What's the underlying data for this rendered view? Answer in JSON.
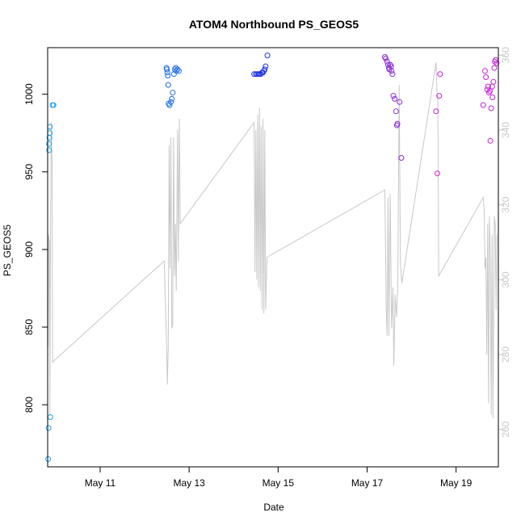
{
  "chart_data": {
    "type": "scatter",
    "title": "ATOM4 Northbound PS_GEOS5",
    "xlabel": "Date",
    "ylabel": "PS_GEOS5",
    "x_unit": "days since May 9 00:00",
    "xlim": [
      9.82,
      19.95
    ],
    "ylim": [
      760,
      1030
    ],
    "y2lim": [
      250,
      362
    ],
    "x_ticks": [
      {
        "value": 11,
        "label": "May 11"
      },
      {
        "value": 13,
        "label": "May 13"
      },
      {
        "value": 15,
        "label": "May 15"
      },
      {
        "value": 17,
        "label": "May 17"
      },
      {
        "value": 19,
        "label": "May 19"
      }
    ],
    "y_ticks": [
      800,
      850,
      900,
      950,
      1000
    ],
    "y2_ticks": [
      260,
      280,
      300,
      320,
      340,
      360
    ],
    "colors": {
      "axis": "#000000",
      "secondary_axis": "#c8c8c8",
      "line": "#c8c8c8"
    },
    "points_series": [
      {
        "color": "#1aa3e8",
        "points": [
          [
            9.83,
            765
          ],
          [
            9.84,
            785
          ],
          [
            9.85,
            964
          ],
          [
            9.85,
            968
          ],
          [
            9.86,
            972
          ],
          [
            9.87,
            975
          ],
          [
            9.87,
            979
          ],
          [
            9.88,
            792
          ],
          [
            9.93,
            993
          ],
          [
            9.95,
            993
          ]
        ]
      },
      {
        "color": "#1f6ee8",
        "points": [
          [
            12.49,
            1017
          ],
          [
            12.5,
            1016
          ],
          [
            12.51,
            1014
          ],
          [
            12.52,
            1012
          ],
          [
            12.53,
            1006
          ],
          [
            12.54,
            994
          ],
          [
            12.56,
            993
          ],
          [
            12.59,
            995
          ],
          [
            12.61,
            997
          ],
          [
            12.63,
            1001
          ],
          [
            12.66,
            1013
          ],
          [
            12.68,
            1016
          ],
          [
            12.7,
            1017
          ],
          [
            12.71,
            1015
          ],
          [
            12.74,
            1016
          ],
          [
            12.77,
            1015
          ]
        ]
      },
      {
        "color": "#2233e0",
        "points": [
          [
            14.46,
            1013
          ],
          [
            14.5,
            1013
          ],
          [
            14.53,
            1013
          ],
          [
            14.56,
            1013
          ],
          [
            14.58,
            1013
          ],
          [
            14.61,
            1013
          ],
          [
            14.64,
            1014
          ],
          [
            14.66,
            1014
          ],
          [
            14.68,
            1015
          ],
          [
            14.7,
            1016
          ],
          [
            14.72,
            1018
          ],
          [
            14.76,
            1025
          ]
        ]
      },
      {
        "color": "#8a2ad8",
        "points": [
          [
            17.4,
            1024
          ],
          [
            17.42,
            1023
          ],
          [
            17.45,
            1021
          ],
          [
            17.47,
            1019
          ],
          [
            17.49,
            1017
          ],
          [
            17.5,
            1016
          ],
          [
            17.52,
            1019
          ],
          [
            17.54,
            1018
          ],
          [
            17.55,
            1015
          ],
          [
            17.57,
            1013
          ],
          [
            17.59,
            999
          ],
          [
            17.62,
            997
          ],
          [
            17.65,
            989
          ],
          [
            17.67,
            980
          ],
          [
            17.68,
            981
          ],
          [
            17.73,
            995
          ],
          [
            17.77,
            959
          ]
        ]
      },
      {
        "color": "#c81ed8",
        "points": [
          [
            18.55,
            989
          ],
          [
            18.58,
            949
          ],
          [
            18.62,
            999
          ],
          [
            18.64,
            1013
          ],
          [
            19.61,
            993
          ],
          [
            19.65,
            1015
          ],
          [
            19.67,
            1011
          ],
          [
            19.7,
            1003
          ],
          [
            19.72,
            1005
          ],
          [
            19.74,
            1001
          ],
          [
            19.76,
            1002
          ],
          [
            19.77,
            970
          ],
          [
            19.79,
            991
          ],
          [
            19.81,
            1005
          ],
          [
            19.82,
            998
          ],
          [
            19.84,
            1008
          ],
          [
            19.86,
            1017
          ],
          [
            19.87,
            1021
          ],
          [
            19.89,
            1022
          ],
          [
            19.91,
            1020
          ]
        ]
      }
    ],
    "line_series": {
      "axis": "right",
      "points": [
        [
          9.83,
          282
        ],
        [
          9.84,
          312
        ],
        [
          9.86,
          310
        ],
        [
          9.87,
          264
        ],
        [
          9.88,
          300
        ],
        [
          9.9,
          342
        ],
        [
          9.92,
          331
        ],
        [
          9.93,
          278
        ],
        [
          12.44,
          305
        ],
        [
          12.49,
          284
        ],
        [
          12.51,
          272
        ],
        [
          12.53,
          282
        ],
        [
          12.55,
          336
        ],
        [
          12.57,
          303
        ],
        [
          12.59,
          338
        ],
        [
          12.61,
          287
        ],
        [
          12.63,
          288
        ],
        [
          12.65,
          338
        ],
        [
          12.67,
          301
        ],
        [
          12.69,
          315
        ],
        [
          12.71,
          297
        ],
        [
          12.74,
          340
        ],
        [
          12.76,
          305
        ],
        [
          12.78,
          343
        ],
        [
          12.8,
          315
        ],
        [
          14.46,
          342
        ],
        [
          14.48,
          302
        ],
        [
          14.5,
          340
        ],
        [
          14.52,
          300
        ],
        [
          14.54,
          344
        ],
        [
          14.56,
          298
        ],
        [
          14.58,
          346
        ],
        [
          14.6,
          297
        ],
        [
          14.62,
          341
        ],
        [
          14.64,
          292
        ],
        [
          14.66,
          343
        ],
        [
          14.68,
          291
        ],
        [
          14.7,
          340
        ],
        [
          14.72,
          292
        ],
        [
          14.75,
          306
        ],
        [
          17.4,
          324
        ],
        [
          17.43,
          292
        ],
        [
          17.45,
          285
        ],
        [
          17.47,
          322
        ],
        [
          17.49,
          285
        ],
        [
          17.52,
          323
        ],
        [
          17.55,
          287
        ],
        [
          17.58,
          298
        ],
        [
          17.6,
          277
        ],
        [
          17.63,
          296
        ],
        [
          17.66,
          290
        ],
        [
          17.69,
          298
        ],
        [
          17.72,
          352
        ],
        [
          17.75,
          304
        ],
        [
          17.78,
          299
        ],
        [
          18.55,
          358
        ],
        [
          18.57,
          350
        ],
        [
          18.59,
          348
        ],
        [
          18.61,
          301
        ],
        [
          19.61,
          322
        ],
        [
          19.63,
          319
        ],
        [
          19.65,
          303
        ],
        [
          19.67,
          306
        ],
        [
          19.69,
          280
        ],
        [
          19.71,
          315
        ],
        [
          19.73,
          267
        ],
        [
          19.75,
          317
        ],
        [
          19.77,
          305
        ],
        [
          19.79,
          264
        ],
        [
          19.81,
          312
        ],
        [
          19.83,
          263
        ],
        [
          19.86,
          317
        ],
        [
          19.88,
          315
        ],
        [
          19.9,
          292
        ],
        [
          19.92,
          312
        ]
      ]
    }
  }
}
